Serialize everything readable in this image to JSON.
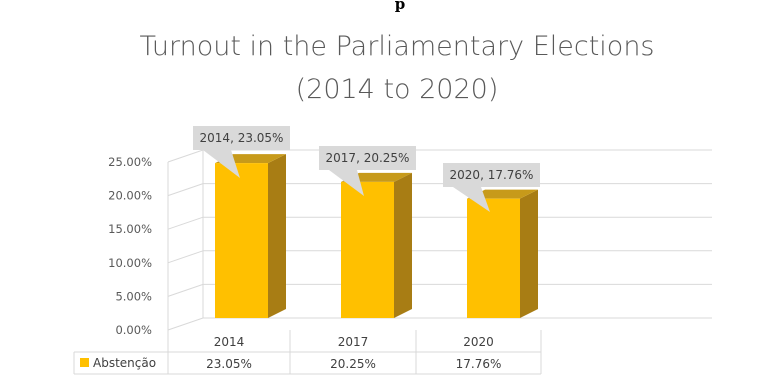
{
  "page_top_fragment": "p",
  "chart_data": {
    "type": "bar",
    "title_lines": [
      "Turnout in the Parliamentary Elections",
      "(2014 to 2020)"
    ],
    "categories": [
      "2014",
      "2017",
      "2020"
    ],
    "series": [
      {
        "name": "Abstenção",
        "values": [
          23.05,
          20.25,
          17.76
        ],
        "color": "#FFC000"
      }
    ],
    "yticks": [
      "0.00%",
      "5.00%",
      "10.00%",
      "15.00%",
      "20.00%",
      "25.00%"
    ],
    "ylim": [
      0,
      25
    ],
    "data_labels": [
      "2014, 23.05%",
      "2017, 20.25%",
      "2020, 17.76%"
    ],
    "table_values": [
      "23.05%",
      "20.25%",
      "17.76%"
    ],
    "grid": true,
    "legend": "data-table",
    "colors": {
      "bar_front": "#FFC000",
      "bar_side": "#A87D14",
      "bar_top": "#C79A1A",
      "grid": "#D9D9D9",
      "callout_fill": "#D9D9D9"
    }
  }
}
